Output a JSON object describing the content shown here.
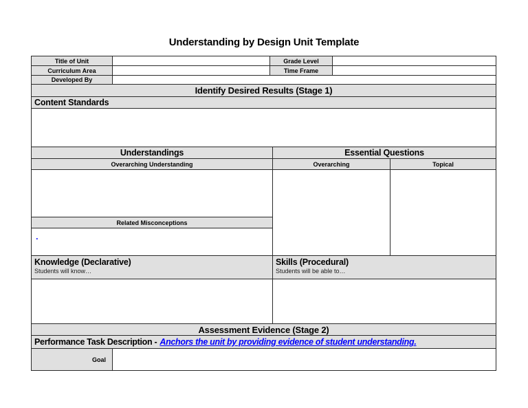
{
  "page": {
    "title": "Understanding by Design Unit Template"
  },
  "info": {
    "title_of_unit_label": "Title of Unit",
    "title_of_unit_value": "",
    "grade_level_label": "Grade Level",
    "grade_level_value": "",
    "curriculum_area_label": "Curriculum Area",
    "curriculum_area_value": "",
    "time_frame_label": "Time Frame",
    "time_frame_value": "",
    "developed_by_label": "Developed By",
    "developed_by_value": ""
  },
  "stage1": {
    "header": "Identify Desired Results (Stage 1)",
    "content_standards": {
      "label": "Content Standards",
      "value": ""
    },
    "understandings": {
      "header": "Understandings",
      "overarching_understanding_label": "Overarching Understanding",
      "overarching_understanding_value": "",
      "related_misconceptions_label": "Related Misconceptions",
      "related_misconceptions_value": "."
    },
    "essential_questions": {
      "header": "Essential Questions",
      "overarching_label": "Overarching",
      "overarching_value": "",
      "topical_label": "Topical",
      "topical_value": ""
    },
    "knowledge": {
      "header": "Knowledge (Declarative)",
      "subtitle": "Students will know…",
      "value": ""
    },
    "skills": {
      "header": "Skills (Procedural)",
      "subtitle": "Students will be able to…",
      "value": ""
    }
  },
  "stage2": {
    "header": "Assessment Evidence (Stage 2)",
    "performance_task": {
      "label": "Performance Task Description -",
      "note": "Anchors the unit by providing evidence of student understanding."
    },
    "goal": {
      "label": "Goal",
      "value": ""
    }
  },
  "colors": {
    "header_bg": "#e0e0e0",
    "note_blue": "#0000ff",
    "border": "#2a2a2a"
  }
}
